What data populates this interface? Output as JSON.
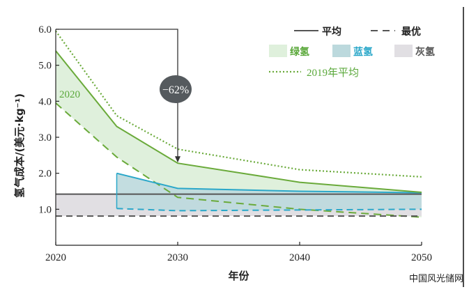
{
  "chart_data": {
    "type": "line",
    "xlabel": "年份",
    "ylabel": "氢气成本/(美元·kg⁻¹)",
    "xlim": [
      2020,
      2050
    ],
    "ylim": [
      0,
      6.0
    ],
    "x_ticks": [
      "2020",
      "2030",
      "2040",
      "2050"
    ],
    "y_ticks": [
      "1.0",
      "2.0",
      "3.0",
      "4.0",
      "5.0",
      "6.0"
    ],
    "grid": false,
    "legend_position": "top-right",
    "legend": {
      "line_styles": [
        {
          "label": "平均",
          "style": "solid"
        },
        {
          "label": "最优",
          "style": "dashed"
        }
      ],
      "bands": [
        {
          "label": "绿氢",
          "color": "#dff0dc",
          "text_color": "#5aa83a"
        },
        {
          "label": "蓝氢",
          "color": "#bcd9dd",
          "text_color": "#2aa7c9"
        },
        {
          "label": "灰氢",
          "color": "#e1dfe3",
          "text_color": "#555555"
        }
      ],
      "reference": {
        "label": "2019年平均",
        "style": "dotted",
        "color": "#6aaa3a"
      }
    },
    "annotations": {
      "series_year_label": "2020",
      "reduction": "−62%"
    },
    "series": [
      {
        "name": "绿氢 平均",
        "x": [
          2020,
          2025,
          2030,
          2040,
          2050
        ],
        "y": [
          5.4,
          3.3,
          2.28,
          1.75,
          1.47
        ]
      },
      {
        "name": "绿氢 最优",
        "x": [
          2020,
          2025,
          2030,
          2040,
          2050
        ],
        "y": [
          3.95,
          2.45,
          1.33,
          1.0,
          0.78
        ]
      },
      {
        "name": "2019年平均",
        "x": [
          2020,
          2025,
          2030,
          2040,
          2050
        ],
        "y": [
          5.95,
          3.6,
          2.67,
          2.1,
          1.9
        ]
      },
      {
        "name": "蓝氢 平均",
        "x": [
          2025,
          2030,
          2040,
          2050
        ],
        "y": [
          2.0,
          1.58,
          1.5,
          1.46
        ]
      },
      {
        "name": "蓝氢 最优",
        "x": [
          2025,
          2030,
          2040,
          2050
        ],
        "y": [
          1.02,
          0.96,
          0.98,
          1.0
        ]
      },
      {
        "name": "灰氢 平均",
        "x": [
          2020,
          2050
        ],
        "y": [
          1.42,
          1.42
        ]
      },
      {
        "name": "灰氢 最优",
        "x": [
          2020,
          2050
        ],
        "y": [
          0.81,
          0.81
        ]
      }
    ]
  },
  "watermark": "中国风光储网",
  "colors": {
    "green_line": "#6aaa3a",
    "blue_line": "#2aa7c9",
    "gray_line": "#555555",
    "green_fill": "#dff0dc",
    "blue_fill": "#bcd9dd",
    "gray_fill": "#e1dfe3",
    "badge_fill": "#555a5e"
  }
}
